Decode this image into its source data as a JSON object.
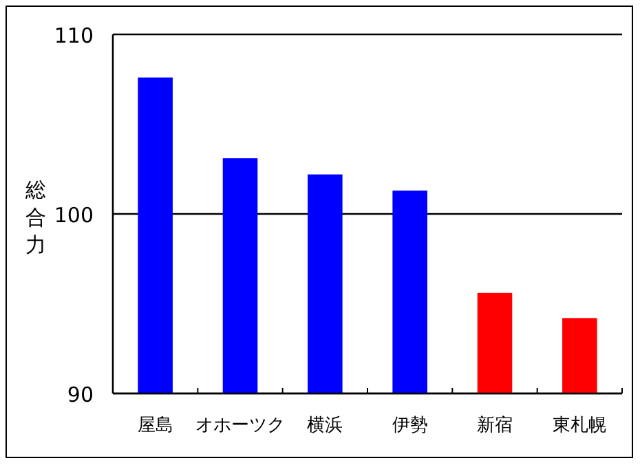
{
  "chart_data": {
    "type": "bar",
    "ylabel": "総合力",
    "categories": [
      "屋島",
      "オホーツク",
      "横浜",
      "伊勢",
      "新宿",
      "東札幌"
    ],
    "values": [
      107.6,
      103.1,
      102.2,
      101.3,
      95.6,
      94.2
    ],
    "colors": [
      "#0000ff",
      "#0000ff",
      "#0000ff",
      "#0000ff",
      "#ff0000",
      "#ff0000"
    ],
    "ylim": [
      90,
      110
    ],
    "yticks": [
      90,
      100,
      110
    ],
    "grid": "y"
  }
}
